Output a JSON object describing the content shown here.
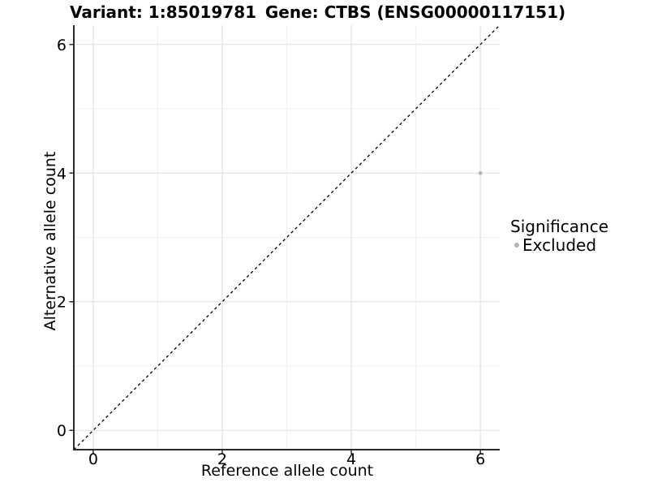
{
  "header": {
    "variant_title": "Variant: 1:85019781",
    "gene_title": "Gene: CTBS (ENSG00000117151)"
  },
  "legend": {
    "title": "Significance",
    "items": [
      {
        "label": "Excluded",
        "marker": "circle-icon",
        "color": "#b4b4b4"
      }
    ]
  },
  "chart_data": {
    "type": "scatter",
    "title": "Variant: 1:85019781 | Gene: CTBS (ENSG00000117151)",
    "xlabel": "Reference allele count",
    "ylabel": "Alternative allele count",
    "xlim": [
      -0.3,
      6.3
    ],
    "ylim": [
      -0.3,
      6.3
    ],
    "x_ticks": [
      0,
      2,
      4,
      6
    ],
    "y_ticks": [
      0,
      2,
      4,
      6
    ],
    "x_minor_gridlines": [
      1,
      3,
      5
    ],
    "y_minor_gridlines": [
      1,
      3,
      5
    ],
    "grid": "major and minor, light gray on white",
    "legend_position": "right",
    "series": [
      {
        "name": "Excluded",
        "color": "#b4b4b4",
        "marker": "circle",
        "points": [
          {
            "x": 6,
            "y": 4
          }
        ]
      }
    ],
    "reference_line": {
      "type": "identity y=x",
      "style": "dashed",
      "color": "#000000",
      "from": [
        -0.3,
        -0.3
      ],
      "to": [
        6.3,
        6.3
      ]
    }
  },
  "colors": {
    "background": "#ffffff",
    "axis_line": "#2b2b2b",
    "tick_mark": "#2b2b2b",
    "major_grid": "#e4e4e4",
    "minor_grid": "#f1f1f1",
    "point": "#b4b4b4",
    "text": "#000000"
  }
}
